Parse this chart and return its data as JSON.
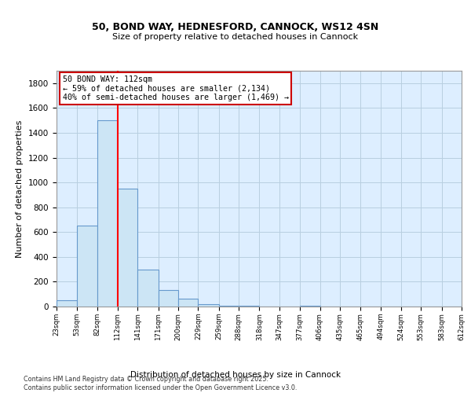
{
  "title_line1": "50, BOND WAY, HEDNESFORD, CANNOCK, WS12 4SN",
  "title_line2": "Size of property relative to detached houses in Cannock",
  "xlabel": "Distribution of detached houses by size in Cannock",
  "ylabel": "Number of detached properties",
  "bar_edges": [
    23,
    53,
    82,
    112,
    141,
    171,
    200,
    229,
    259,
    288,
    318,
    347,
    377,
    406,
    435,
    465,
    494,
    524,
    553,
    583,
    612
  ],
  "bar_heights": [
    50,
    650,
    1500,
    950,
    300,
    135,
    65,
    20,
    5,
    5,
    0,
    0,
    5,
    0,
    0,
    0,
    0,
    0,
    0,
    0
  ],
  "bar_color": "#cce5f5",
  "bar_edge_color": "#6699cc",
  "red_line_x": 112,
  "ylim": [
    0,
    1900
  ],
  "yticks": [
    0,
    200,
    400,
    600,
    800,
    1000,
    1200,
    1400,
    1600,
    1800
  ],
  "annotation_text": "50 BOND WAY: 112sqm\n← 59% of detached houses are smaller (2,134)\n40% of semi-detached houses are larger (1,469) →",
  "annotation_box_color": "#ffffff",
  "annotation_box_edge": "#cc0000",
  "footnote_line1": "Contains HM Land Registry data © Crown copyright and database right 2025.",
  "footnote_line2": "Contains public sector information licensed under the Open Government Licence v3.0.",
  "bg_color": "#ffffff",
  "plot_bg_color": "#ddeeff",
  "grid_color": "#b8cfe0",
  "tick_labels": [
    "23sqm",
    "53sqm",
    "82sqm",
    "112sqm",
    "141sqm",
    "171sqm",
    "200sqm",
    "229sqm",
    "259sqm",
    "288sqm",
    "318sqm",
    "347sqm",
    "377sqm",
    "406sqm",
    "435sqm",
    "465sqm",
    "494sqm",
    "524sqm",
    "553sqm",
    "583sqm",
    "612sqm"
  ]
}
